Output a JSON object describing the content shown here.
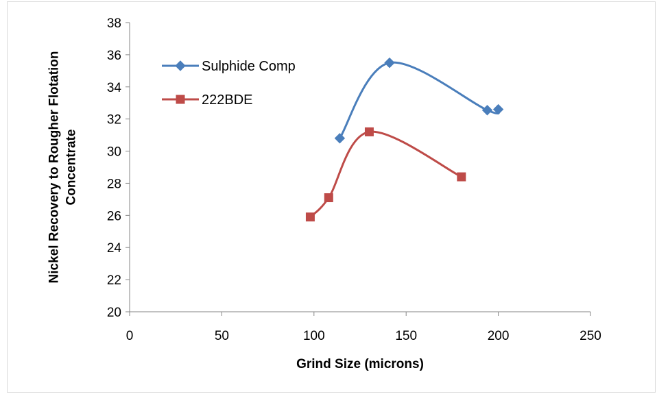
{
  "chart_data": {
    "type": "scatter",
    "title": "",
    "xlabel": "Grind Size (microns)",
    "ylabel_lines": [
      "Nickel Recovery to Rougher Flotation",
      "Concentrate"
    ],
    "xlim": [
      0,
      250
    ],
    "ylim": [
      20,
      38
    ],
    "x_ticks": [
      0,
      50,
      100,
      150,
      200,
      250
    ],
    "y_ticks": [
      20,
      22,
      24,
      26,
      28,
      30,
      32,
      34,
      36,
      38
    ],
    "grid": false,
    "smooth_lines": true,
    "legend_position": "top-left",
    "series": [
      {
        "name": "Sulphide Comp",
        "color": "#4a7ebb",
        "marker": "diamond",
        "x": [
          114,
          141,
          194,
          200
        ],
        "y": [
          30.8,
          35.5,
          32.55,
          32.6
        ]
      },
      {
        "name": "222BDE",
        "color": "#be4b48",
        "marker": "square",
        "x": [
          98,
          108,
          130,
          180
        ],
        "y": [
          25.9,
          27.1,
          31.2,
          28.4
        ]
      }
    ]
  }
}
